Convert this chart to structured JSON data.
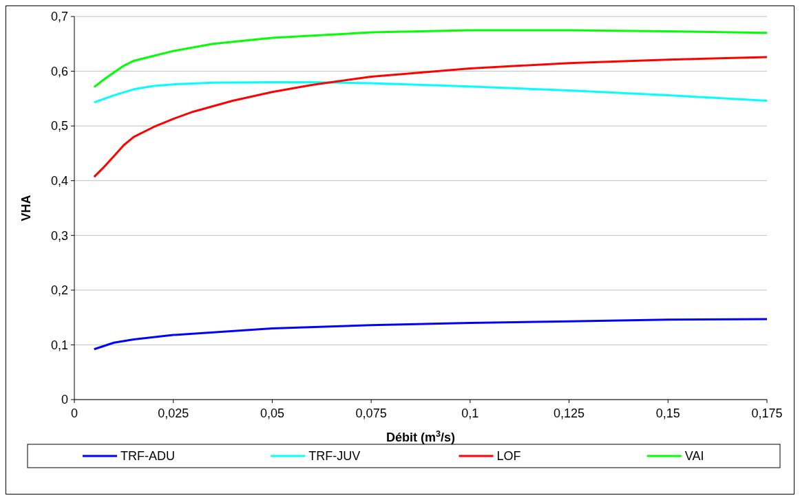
{
  "chart_data": {
    "type": "line",
    "xlabel": "Débit (m$^{3}$/s)",
    "ylabel": "VHA",
    "xlim": [
      0,
      0.175
    ],
    "xticks": [
      0,
      {
        "value": 0.025,
        "label": "0,025"
      },
      {
        "value": 0.05,
        "label": "0,05"
      },
      {
        "value": 0.075,
        "label": "0,075"
      },
      {
        "value": 0.1,
        "label": "0,1"
      },
      {
        "value": 0.125,
        "label": "0,125"
      },
      {
        "value": 0.15,
        "label": "0,15"
      },
      {
        "value": 0.175,
        "label": "0,175"
      }
    ],
    "ylim": [
      0,
      0.7
    ],
    "yticks": [
      0,
      {
        "value": 0.1,
        "label": "0,1"
      },
      {
        "value": 0.2,
        "label": "0,2"
      },
      {
        "value": 0.3,
        "label": "0,3"
      },
      {
        "value": 0.4,
        "label": "0,4"
      },
      {
        "value": 0.5,
        "label": "0,5"
      },
      {
        "value": 0.6,
        "label": "0,6"
      },
      {
        "value": 0.7,
        "label": "0,7"
      }
    ],
    "grid": "y",
    "legend": "bottom",
    "marker": "none",
    "line_style": "solid",
    "series": [
      {
        "name": "TRF-ADU",
        "color": "#0000ff",
        "x": [
          0.005,
          0.01,
          0.015,
          0.025,
          0.05,
          0.075,
          0.1,
          0.125,
          0.15,
          0.175
        ],
        "values": [
          0.092,
          0.104,
          0.11,
          0.118,
          0.13,
          0.136,
          0.14,
          0.143,
          0.146,
          0.147
        ]
      },
      {
        "name": "TRF-JUV",
        "color": "#00ffff",
        "x": [
          0.005,
          0.01,
          0.015,
          0.02,
          0.025,
          0.035,
          0.05,
          0.06,
          0.075,
          0.1,
          0.125,
          0.15,
          0.175
        ],
        "values": [
          0.543,
          0.556,
          0.567,
          0.573,
          0.576,
          0.579,
          0.58,
          0.58,
          0.578,
          0.572,
          0.565,
          0.556,
          0.546
        ]
      },
      {
        "name": "LOF",
        "color": "#ff0000",
        "x": [
          0.005,
          0.0075,
          0.01,
          0.0125,
          0.015,
          0.02,
          0.025,
          0.03,
          0.04,
          0.05,
          0.06,
          0.075,
          0.1,
          0.125,
          0.15,
          0.175
        ],
        "values": [
          0.407,
          0.425,
          0.445,
          0.465,
          0.48,
          0.498,
          0.513,
          0.526,
          0.546,
          0.562,
          0.575,
          0.59,
          0.605,
          0.615,
          0.621,
          0.626
        ]
      },
      {
        "name": "VAI",
        "color": "#00ff00",
        "x": [
          0.005,
          0.0075,
          0.01,
          0.0125,
          0.015,
          0.02,
          0.025,
          0.035,
          0.05,
          0.075,
          0.1,
          0.125,
          0.15,
          0.175
        ],
        "values": [
          0.571,
          0.585,
          0.598,
          0.61,
          0.619,
          0.628,
          0.637,
          0.65,
          0.661,
          0.671,
          0.675,
          0.675,
          0.673,
          0.67
        ]
      }
    ]
  }
}
